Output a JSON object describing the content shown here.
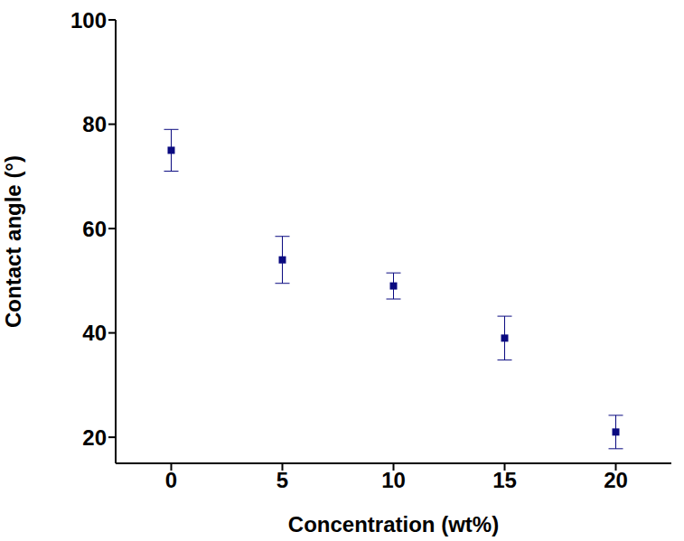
{
  "chart_data": {
    "type": "scatter",
    "x": [
      0,
      5,
      10,
      15,
      20
    ],
    "values": [
      75,
      54,
      49,
      39,
      21
    ],
    "errors": [
      4,
      4.5,
      2.5,
      4.2,
      3.2
    ],
    "xlabel": "Concentration (wt%)",
    "ylabel": "Contact angle (°)",
    "xlim": [
      -2.5,
      22.5
    ],
    "ylim": [
      15,
      100
    ],
    "xticks": [
      0,
      5,
      10,
      15,
      20
    ],
    "yticks": [
      20,
      40,
      60,
      80,
      100
    ],
    "color": "#0a0a80",
    "marker": "square"
  }
}
